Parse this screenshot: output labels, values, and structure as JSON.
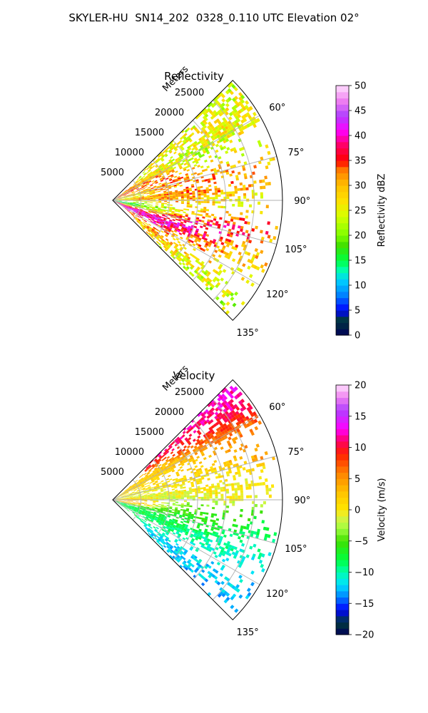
{
  "suptitle": "SKYLER-HU  SN14_202  0328_0.110 UTC Elevation 02°",
  "colors": {
    "axis": "#000000",
    "grid": "#b0b0b0",
    "background": "#ffffff"
  },
  "chart_data": [
    {
      "type": "heatmap",
      "title": "Reflectivity",
      "projection": "polar-sector",
      "azimuth_range_deg": [
        45,
        135
      ],
      "range_max_m": 30000,
      "radial_axis_label": "Meters",
      "radial_ticks": [
        5000,
        10000,
        15000,
        20000,
        25000
      ],
      "angular_ticks": [
        60,
        75,
        90,
        105,
        120,
        135
      ],
      "grid": true,
      "colorbar": {
        "label": "Reflectivity dBZ",
        "range": [
          0,
          50
        ],
        "ticks": [
          0,
          5,
          10,
          15,
          20,
          25,
          30,
          35,
          40,
          45,
          50
        ],
        "stops": [
          [
            0,
            "#00005a"
          ],
          [
            3,
            "#003a3a"
          ],
          [
            5,
            "#0000ff"
          ],
          [
            8,
            "#0080ff"
          ],
          [
            11,
            "#00d0ff"
          ],
          [
            13,
            "#00ffb0"
          ],
          [
            15,
            "#00ff40"
          ],
          [
            18,
            "#40e000"
          ],
          [
            20,
            "#7fff00"
          ],
          [
            24,
            "#d8ff00"
          ],
          [
            27,
            "#ffe000"
          ],
          [
            30,
            "#ffc000"
          ],
          [
            33,
            "#ff8000"
          ],
          [
            35,
            "#ff0000"
          ],
          [
            38,
            "#ff0060"
          ],
          [
            41,
            "#ff00ff"
          ],
          [
            44,
            "#b040ff"
          ],
          [
            47,
            "#f080f0"
          ],
          [
            50,
            "#ffe0ff"
          ]
        ]
      },
      "cells": [
        {
          "az": 50,
          "r": 24000,
          "value": 24
        },
        {
          "az": 55,
          "r": 21000,
          "value": 27
        },
        {
          "az": 60,
          "r": 25500,
          "value": 26
        },
        {
          "az": 63,
          "r": 17000,
          "value": 22
        },
        {
          "az": 68,
          "r": 12000,
          "value": 31
        },
        {
          "az": 72,
          "r": 9000,
          "value": 35
        },
        {
          "az": 75,
          "r": 14000,
          "value": 30
        },
        {
          "az": 78,
          "r": 6000,
          "value": 24
        },
        {
          "az": 82,
          "r": 11000,
          "value": 33
        },
        {
          "az": 87,
          "r": 7000,
          "value": 28
        },
        {
          "az": 90,
          "r": 9000,
          "value": 36
        },
        {
          "az": 93,
          "r": 13000,
          "value": 26
        },
        {
          "az": 97,
          "r": 5000,
          "value": 14
        },
        {
          "az": 100,
          "r": 10000,
          "value": 22
        },
        {
          "az": 104,
          "r": 14000,
          "value": 36
        },
        {
          "az": 108,
          "r": 12000,
          "value": 42
        },
        {
          "az": 112,
          "r": 16000,
          "value": 38
        },
        {
          "az": 116,
          "r": 20000,
          "value": 28
        },
        {
          "az": 120,
          "r": 18000,
          "value": 30
        },
        {
          "az": 125,
          "r": 22000,
          "value": 26
        },
        {
          "az": 130,
          "r": 24000,
          "value": 22
        }
      ]
    },
    {
      "type": "heatmap",
      "title": "Velocity",
      "projection": "polar-sector",
      "azimuth_range_deg": [
        45,
        135
      ],
      "range_max_m": 30000,
      "radial_axis_label": "Meters",
      "radial_ticks": [
        5000,
        10000,
        15000,
        20000,
        25000
      ],
      "angular_ticks": [
        60,
        75,
        90,
        105,
        120,
        135
      ],
      "grid": true,
      "colorbar": {
        "label": "Velocity (m/s)",
        "range": [
          -20,
          20
        ],
        "ticks": [
          -20,
          -15,
          -10,
          -5,
          0,
          5,
          10,
          15,
          20
        ],
        "stops": [
          [
            -20,
            "#00005a"
          ],
          [
            -18,
            "#003a3a"
          ],
          [
            -16,
            "#0000ff"
          ],
          [
            -14,
            "#0080ff"
          ],
          [
            -12,
            "#00e0ff"
          ],
          [
            -10,
            "#00ffb0"
          ],
          [
            -8,
            "#00ff40"
          ],
          [
            -5,
            "#40e000"
          ],
          [
            -3,
            "#a0ff40"
          ],
          [
            -1,
            "#e0f040"
          ],
          [
            0,
            "#ffe800"
          ],
          [
            3,
            "#ffc000"
          ],
          [
            6,
            "#ff8000"
          ],
          [
            9,
            "#ff2000"
          ],
          [
            11,
            "#ff0060"
          ],
          [
            13,
            "#ff00ff"
          ],
          [
            16,
            "#b040ff"
          ],
          [
            18,
            "#f080f0"
          ],
          [
            20,
            "#ffe0ff"
          ]
        ]
      },
      "cells": [
        {
          "az": 50,
          "r": 24000,
          "value": 13
        },
        {
          "az": 54,
          "r": 22000,
          "value": 10
        },
        {
          "az": 60,
          "r": 21000,
          "value": 5
        },
        {
          "az": 66,
          "r": 14000,
          "value": 2
        },
        {
          "az": 72,
          "r": 10000,
          "value": 1
        },
        {
          "az": 78,
          "r": 6000,
          "value": -1
        },
        {
          "az": 84,
          "r": 13000,
          "value": 0
        },
        {
          "az": 90,
          "r": 9000,
          "value": -3
        },
        {
          "az": 94,
          "r": 4000,
          "value": 5
        },
        {
          "az": 98,
          "r": 12000,
          "value": -4
        },
        {
          "az": 104,
          "r": 14000,
          "value": -7
        },
        {
          "az": 108,
          "r": 9000,
          "value": -8
        },
        {
          "az": 112,
          "r": 17000,
          "value": -9
        },
        {
          "az": 118,
          "r": 20000,
          "value": -11
        },
        {
          "az": 124,
          "r": 22000,
          "value": -12
        },
        {
          "az": 130,
          "r": 24000,
          "value": -13
        }
      ]
    }
  ]
}
